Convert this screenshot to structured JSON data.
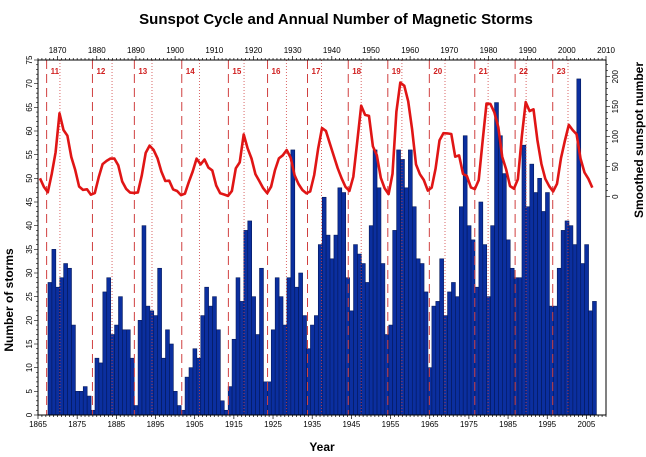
{
  "chart_data": {
    "type": "bar+line",
    "title": "Sunspot Cycle and Annual Number of Magnetic Storms",
    "xlabel": "Year",
    "ylabel": "Number of storms",
    "y2label": "Smoothed sunspot number",
    "xlim": [
      1865,
      2010
    ],
    "ylim": [
      0,
      75
    ],
    "y2lim": [
      0,
      200
    ],
    "x_ticks_bottom": [
      1865,
      1875,
      1885,
      1895,
      1905,
      1915,
      1925,
      1935,
      1945,
      1955,
      1965,
      1975,
      1985,
      1995,
      2005
    ],
    "x_ticks_top": [
      1870,
      1880,
      1890,
      1900,
      1910,
      1920,
      1930,
      1940,
      1950,
      1960,
      1970,
      1980,
      1990,
      2000,
      2010
    ],
    "y_ticks": [
      0,
      5,
      10,
      15,
      20,
      25,
      30,
      35,
      40,
      45,
      50,
      55,
      60,
      65,
      70,
      75
    ],
    "y2_ticks": [
      0,
      50,
      100,
      150,
      200
    ],
    "grid": false,
    "colors": {
      "bars": "#0b2f9f",
      "bar_edge": "#04185a",
      "line": "#e01515",
      "cycle_lines": "#d04040"
    },
    "storms": {
      "start_year": 1868,
      "values": [
        28,
        35,
        27,
        29,
        32,
        31,
        19,
        5,
        5,
        6,
        4,
        1,
        12,
        11,
        26,
        29,
        17,
        19,
        25,
        18,
        18,
        12,
        2,
        20,
        40,
        23,
        22,
        21,
        31,
        12,
        18,
        15,
        5,
        2,
        1,
        8,
        10,
        14,
        12,
        21,
        27,
        23,
        25,
        18,
        3,
        1,
        6,
        16,
        29,
        24,
        39,
        41,
        25,
        17,
        31,
        7,
        7,
        18,
        29,
        25,
        19,
        29,
        56,
        27,
        30,
        21,
        14,
        19,
        21,
        36,
        46,
        38,
        33,
        38,
        48,
        47,
        29,
        22,
        36,
        34,
        32,
        28,
        40,
        56,
        48,
        32,
        17,
        19,
        39,
        56,
        54,
        48,
        56,
        44,
        33,
        32,
        26,
        10,
        23,
        24,
        33,
        21,
        26,
        28,
        25,
        44,
        59,
        40,
        37,
        27,
        45,
        36,
        25,
        40,
        66,
        59,
        51,
        37,
        31,
        29,
        29,
        57,
        44,
        53,
        47,
        50,
        43,
        47,
        23,
        23,
        31,
        39,
        41,
        40,
        36,
        71,
        32,
        36,
        22,
        24
      ]
    },
    "sunspots": {
      "start_year": 1865,
      "values": [
        30.6,
        16.3,
        7.3,
        37.6,
        74.0,
        139.0,
        111.2,
        101.6,
        66.2,
        44.7,
        17.0,
        11.3,
        12.4,
        3.4,
        6.0,
        32.3,
        54.3,
        59.7,
        63.7,
        63.5,
        52.2,
        25.4,
        13.1,
        6.8,
        6.3,
        7.1,
        35.6,
        73.0,
        85.1,
        78.0,
        64.0,
        41.8,
        26.2,
        26.7,
        12.1,
        9.5,
        2.7,
        5.0,
        24.4,
        42.0,
        63.5,
        53.8,
        62.0,
        48.5,
        43.9,
        18.6,
        5.7,
        3.6,
        1.4,
        9.6,
        47.4,
        57.1,
        103.9,
        80.6,
        63.6,
        37.6,
        26.1,
        14.2,
        5.8,
        16.7,
        44.3,
        63.9,
        69.0,
        77.8,
        64.9,
        35.7,
        21.2,
        11.1,
        5.7,
        8.7,
        36.1,
        79.7,
        114.4,
        109.6,
        88.8,
        67.8,
        47.5,
        30.6,
        16.3,
        9.6,
        33.2,
        92.6,
        151.6,
        136.3,
        134.7,
        83.9,
        69.4,
        31.5,
        13.9,
        4.4,
        38.0,
        141.7,
        190.2,
        184.8,
        159.0,
        112.3,
        53.9,
        37.5,
        27.9,
        10.2,
        15.1,
        47.0,
        93.8,
        105.9,
        105.5,
        104.5,
        66.6,
        68.9,
        38.0,
        34.5,
        15.5,
        12.6,
        27.5,
        92.5,
        155.4,
        154.6,
        140.4,
        115.9,
        66.6,
        45.9,
        17.9,
        13.4,
        29.4,
        100.2,
        157.6,
        142.6,
        145.7,
        94.3,
        54.6,
        29.9,
        17.5,
        8.6,
        21.5,
        64.3,
        93.3,
        119.6,
        111.0,
        104.0,
        63.7,
        40.4,
        29.8,
        15.2
      ]
    },
    "cycles": [
      {
        "label": "11",
        "min": 1867.2,
        "max": 1870.6
      },
      {
        "label": "12",
        "min": 1878.9,
        "max": 1883.9
      },
      {
        "label": "13",
        "min": 1889.6,
        "max": 1894.1
      },
      {
        "label": "14",
        "min": 1901.7,
        "max": 1906.2
      },
      {
        "label": "15",
        "min": 1913.6,
        "max": 1917.6
      },
      {
        "label": "16",
        "min": 1923.6,
        "max": 1928.4
      },
      {
        "label": "17",
        "min": 1933.8,
        "max": 1937.4
      },
      {
        "label": "18",
        "min": 1944.2,
        "max": 1947.5
      },
      {
        "label": "19",
        "min": 1954.3,
        "max": 1957.9
      },
      {
        "label": "20",
        "min": 1964.9,
        "max": 1968.9
      },
      {
        "label": "21",
        "min": 1976.5,
        "max": 1979.9
      },
      {
        "label": "22",
        "min": 1986.8,
        "max": 1989.6
      },
      {
        "label": "23",
        "min": 1996.4,
        "max": 2000.3
      }
    ]
  }
}
